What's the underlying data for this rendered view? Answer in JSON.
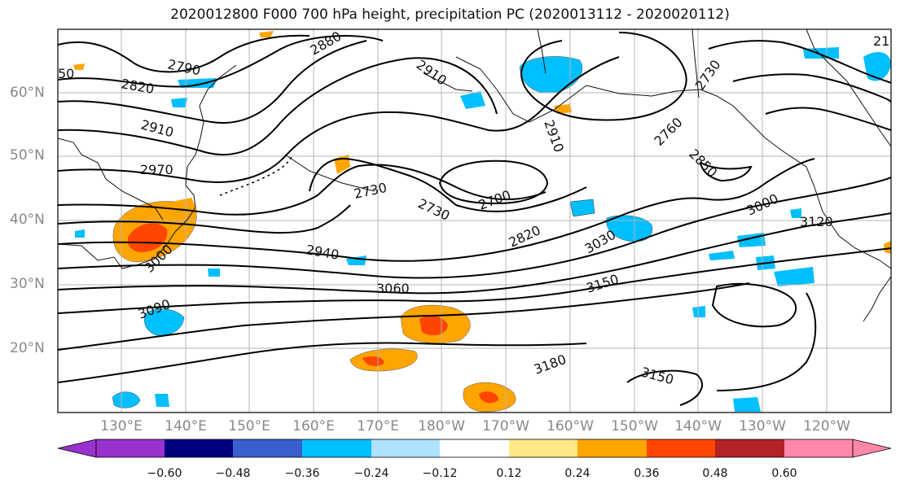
{
  "title": "2020012800 F000 700 hPa height, precipitation PC (2020013112 - 2020020112)",
  "lat_labels": [
    "60°N",
    "50°N",
    "40°N",
    "30°N",
    "20°N"
  ],
  "lon_labels": [
    "130°E",
    "140°E",
    "150°E",
    "160°E",
    "170°E",
    "180°W",
    "170°W",
    "160°W",
    "150°W",
    "140°W",
    "130°W",
    "120°W"
  ],
  "contour_labels": [
    "2790",
    "2820",
    "2880",
    "2910",
    "2910",
    "2970",
    "2730",
    "2730",
    "2700",
    "2760",
    "2850",
    "2730",
    "2820",
    "2940",
    "3030",
    "3000",
    "3060",
    "3090",
    "3150",
    "3120",
    "3180",
    "3150",
    "3000",
    "50",
    "2910",
    "21"
  ],
  "colorbar": {
    "ticks": [
      "−0.60",
      "−0.48",
      "−0.36",
      "−0.24",
      "−0.12",
      "0.12",
      "0.24",
      "0.36",
      "0.48",
      "0.60"
    ],
    "colors": [
      "#9932cc",
      "#000080",
      "#3a5fcd",
      "#00bfff",
      "#b0e2ff",
      "#ffffff",
      "#ffe987",
      "#ffa500",
      "#ff4500",
      "#b22222",
      "#ff88aa"
    ]
  }
}
